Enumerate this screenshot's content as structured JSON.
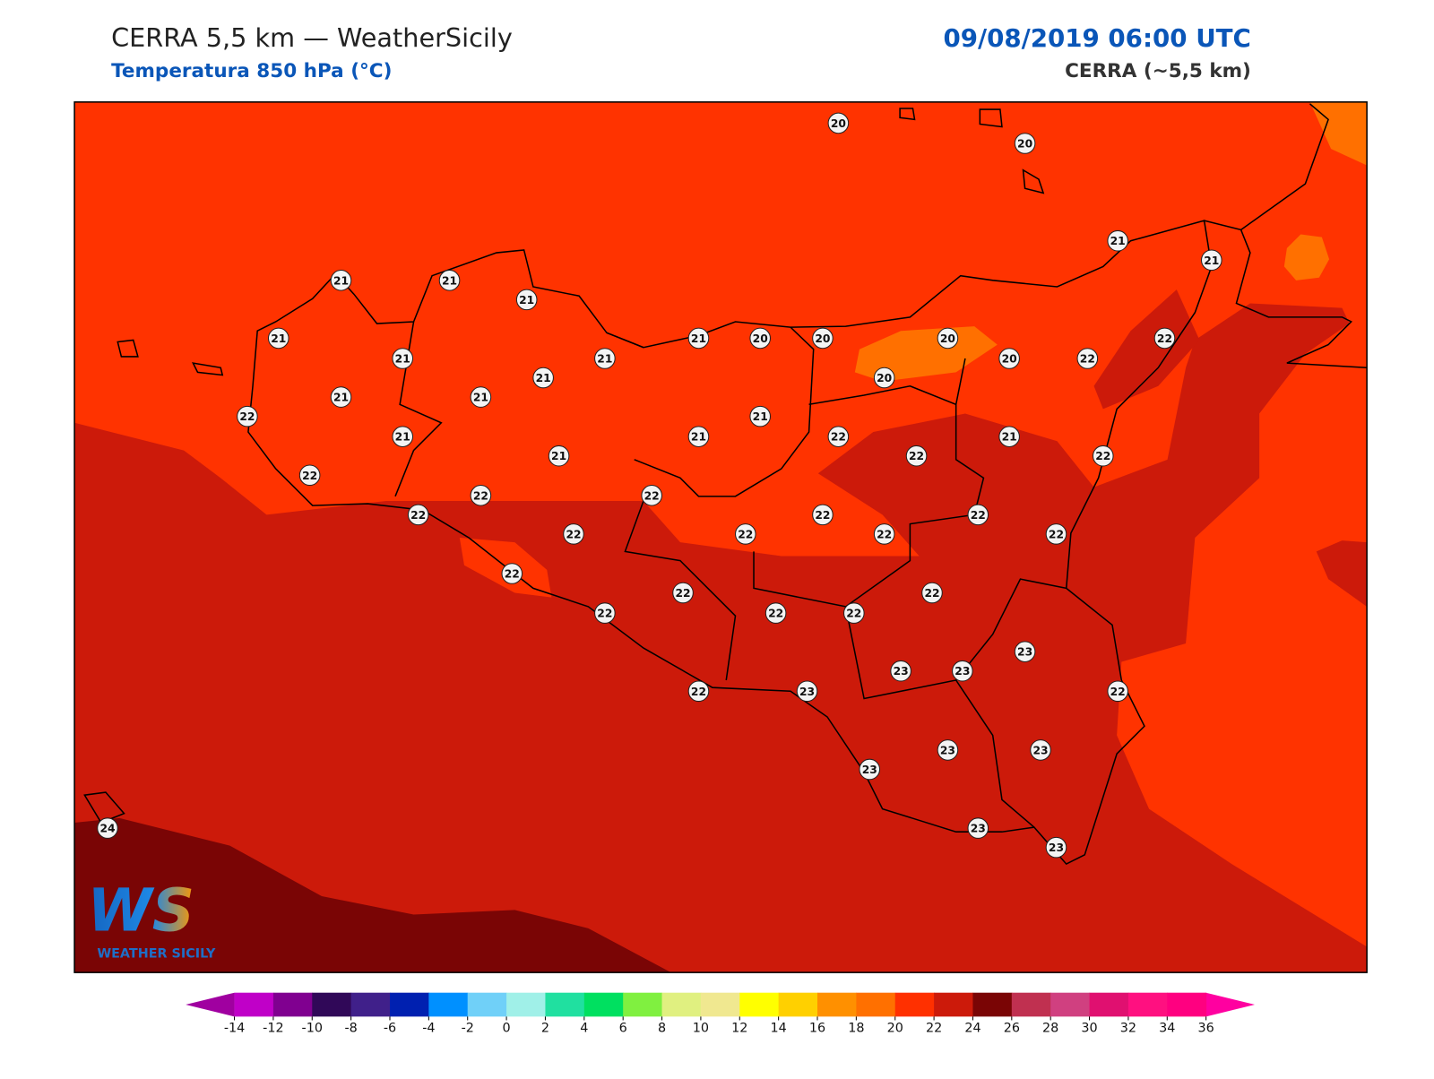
{
  "header": {
    "title": "CERRA 5,5 km — WeatherSicily",
    "subtitle": "Temperatura 850 hPa (°C)",
    "datetime": "09/08/2019 06:00 UTC",
    "model": "CERRA (~5,5 km)"
  },
  "stations": [
    20,
    20,
    21,
    21,
    21,
    21,
    21,
    21,
    21,
    20,
    20,
    20,
    22,
    21,
    21,
    20,
    22,
    21,
    20,
    21,
    21,
    22,
    21,
    21,
    21,
    22,
    21,
    21,
    22,
    22,
    22,
    22,
    22,
    22,
    22,
    22,
    22,
    22,
    22,
    22,
    22,
    22,
    22,
    22,
    22,
    22,
    23,
    23,
    23,
    22,
    23,
    22,
    23,
    23,
    23,
    23,
    23,
    24
  ],
  "colorbar": {
    "ticks": [
      -14,
      -12,
      -10,
      -8,
      -6,
      -4,
      -2,
      0,
      2,
      4,
      6,
      8,
      10,
      12,
      14,
      16,
      18,
      20,
      22,
      24,
      26,
      28,
      30,
      32,
      34,
      36
    ],
    "colors": [
      "#c000c8",
      "#800090",
      "#300858",
      "#40208a",
      "#0020b0",
      "#0090ff",
      "#70d0f8",
      "#a0f0e8",
      "#20e0a0",
      "#00e060",
      "#80f040",
      "#e0f080",
      "#f0e890",
      "#ffff00",
      "#ffd000",
      "#ff9000",
      "#ff7000",
      "#ff3000",
      "#cc1a0a",
      "#7a0505",
      "#c03050",
      "#d04080",
      "#e01070",
      "#ff1080",
      "#ff0080"
    ],
    "under_color": "#a000a0",
    "over_color": "#ff00a0"
  },
  "logo": {
    "mark": "WS",
    "name": "WEATHER SICILY"
  }
}
